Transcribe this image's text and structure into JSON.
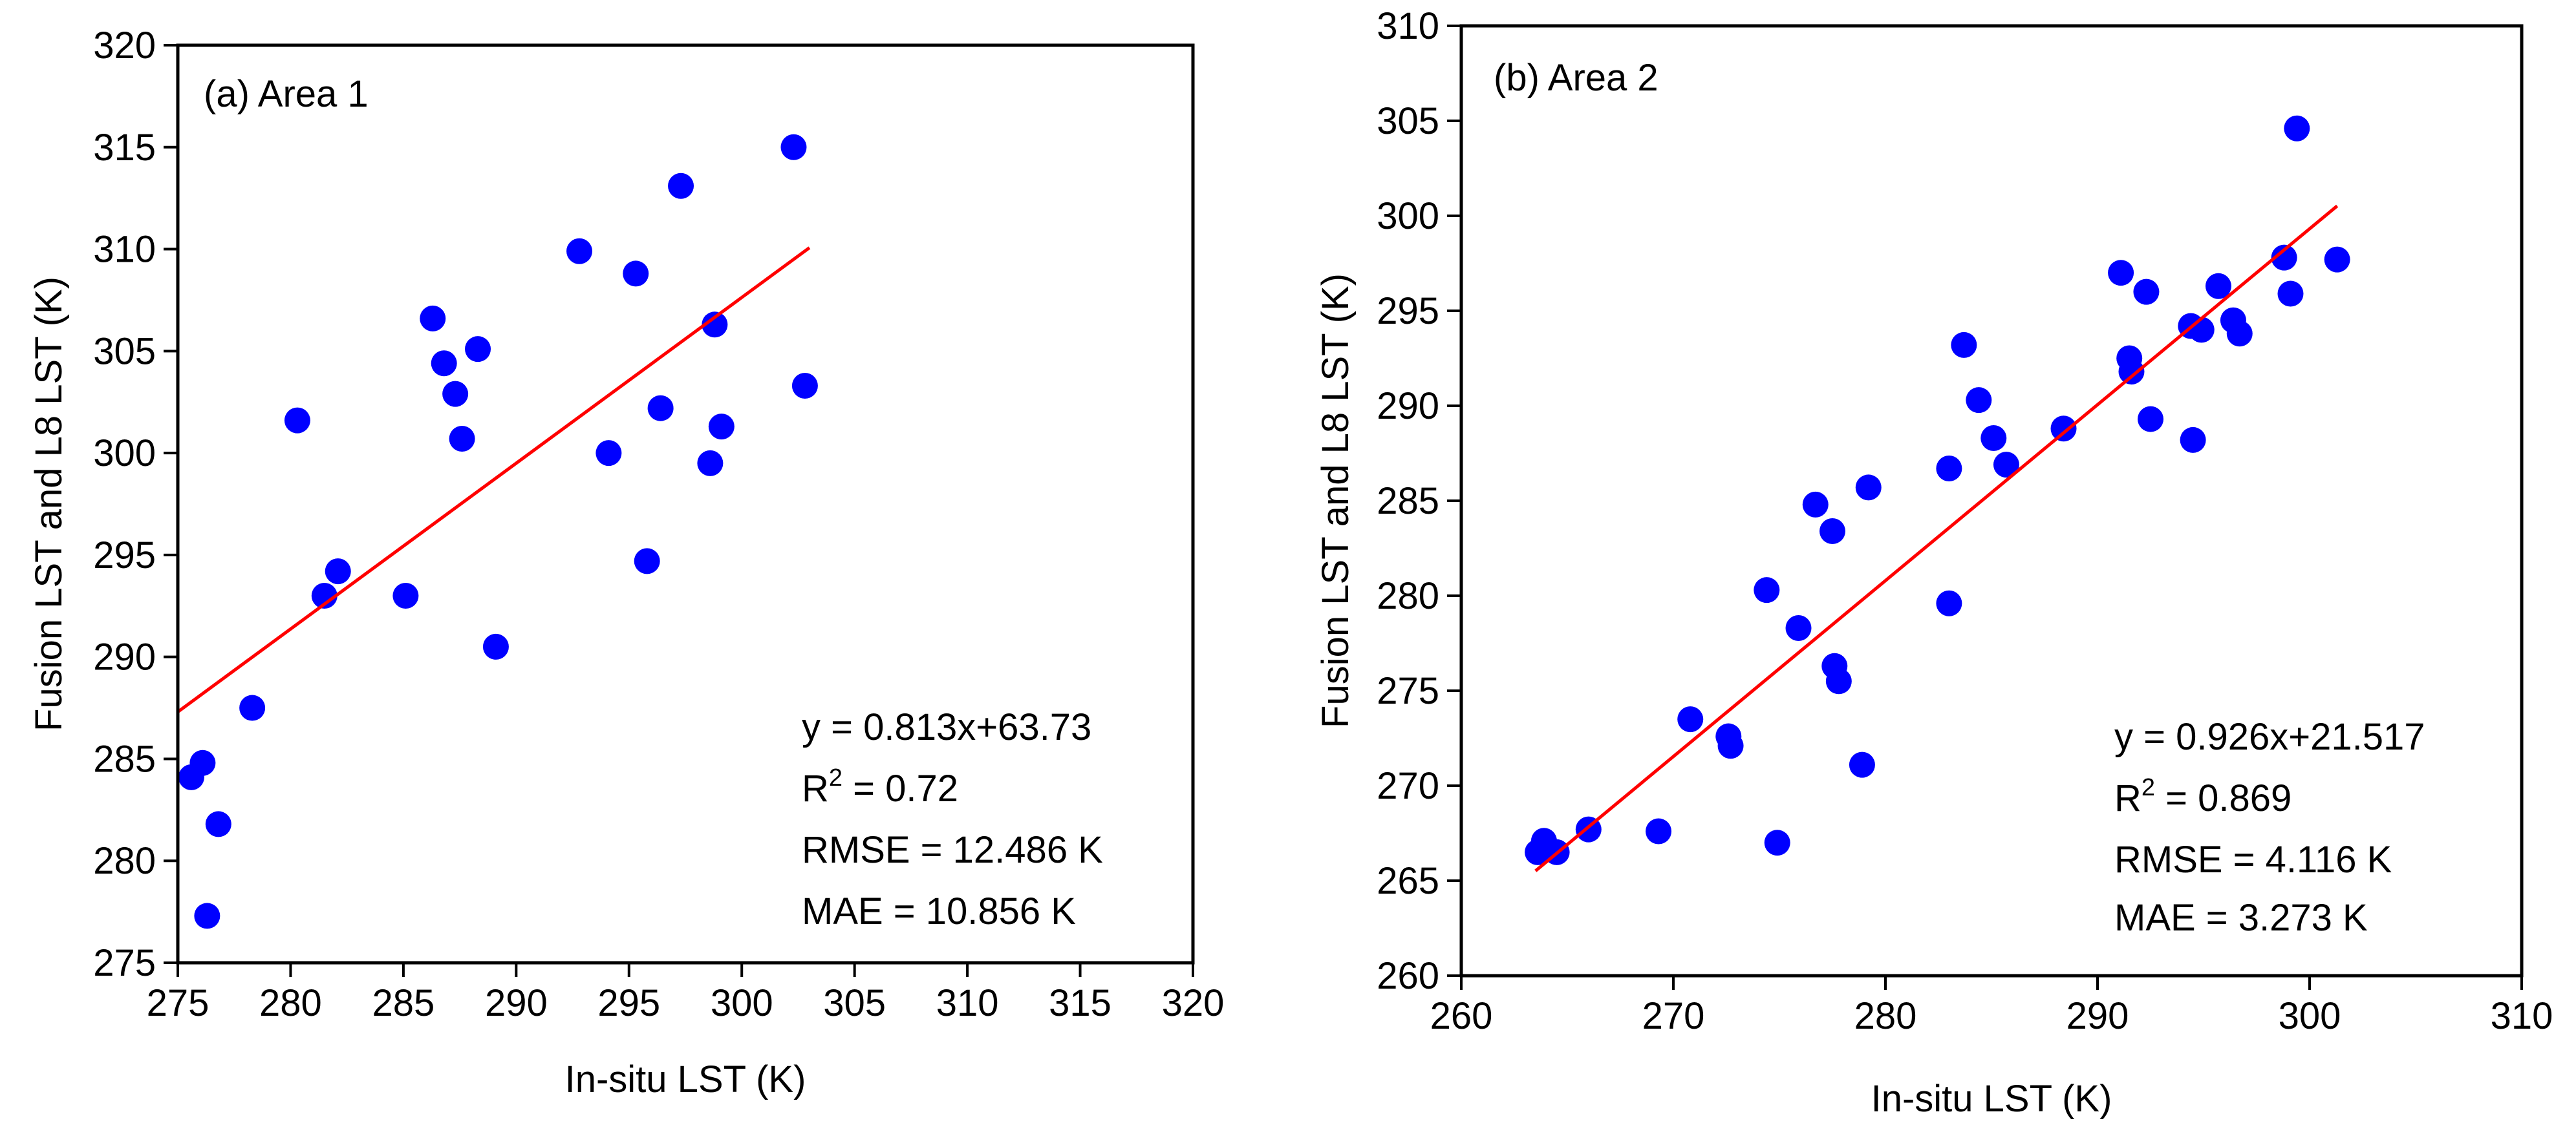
{
  "chart_data": [
    {
      "type": "scatter",
      "panel_label": "(a) Area 1",
      "xlabel": "In-situ LST (K)",
      "ylabel": "Fusion LST and L8 LST (K)",
      "xlim": [
        275,
        320
      ],
      "ylim": [
        275,
        320
      ],
      "xticks": [
        275,
        280,
        285,
        290,
        295,
        300,
        305,
        310,
        315,
        320
      ],
      "yticks": [
        275,
        280,
        285,
        290,
        295,
        300,
        305,
        310,
        315,
        320
      ],
      "point_color": "#0000ff",
      "line_color": "#ff0000",
      "fit": {
        "slope": 0.813,
        "intercept": 63.73,
        "x_range": [
          275,
          303
        ]
      },
      "stats": {
        "equation": "y = 0.813x+63.73",
        "r2_label": "R",
        "r2_sup": "2",
        "r2_value": " = 0.72",
        "rmse": "RMSE = 12.486 K",
        "mae": "MAE = 10.856 K"
      },
      "points": [
        {
          "x": 275.6,
          "y": 284.1
        },
        {
          "x": 276.1,
          "y": 284.8
        },
        {
          "x": 276.3,
          "y": 277.3
        },
        {
          "x": 276.8,
          "y": 281.8
        },
        {
          "x": 278.3,
          "y": 287.5
        },
        {
          "x": 280.3,
          "y": 301.6
        },
        {
          "x": 281.5,
          "y": 293.0
        },
        {
          "x": 282.1,
          "y": 294.2
        },
        {
          "x": 285.1,
          "y": 293.0
        },
        {
          "x": 286.3,
          "y": 306.6
        },
        {
          "x": 286.8,
          "y": 304.4
        },
        {
          "x": 287.3,
          "y": 302.9
        },
        {
          "x": 287.6,
          "y": 300.7
        },
        {
          "x": 288.3,
          "y": 305.1
        },
        {
          "x": 289.1,
          "y": 290.5
        },
        {
          "x": 292.8,
          "y": 309.9
        },
        {
          "x": 294.1,
          "y": 300.0
        },
        {
          "x": 295.3,
          "y": 308.8
        },
        {
          "x": 295.8,
          "y": 294.7
        },
        {
          "x": 296.4,
          "y": 302.2
        },
        {
          "x": 297.3,
          "y": 313.1
        },
        {
          "x": 298.6,
          "y": 299.5
        },
        {
          "x": 298.8,
          "y": 306.3
        },
        {
          "x": 299.1,
          "y": 301.3
        },
        {
          "x": 302.3,
          "y": 315.0
        },
        {
          "x": 302.8,
          "y": 303.3
        }
      ]
    },
    {
      "type": "scatter",
      "panel_label": "(b) Area 2",
      "xlabel": "In-situ LST (K)",
      "ylabel": "Fusion LST and L8 LST (K)",
      "xlim": [
        260,
        310
      ],
      "ylim": [
        260,
        310
      ],
      "xticks": [
        260,
        270,
        280,
        290,
        300,
        310
      ],
      "yticks": [
        260,
        265,
        270,
        275,
        280,
        285,
        290,
        295,
        300,
        305,
        310
      ],
      "point_color": "#0000ff",
      "line_color": "#ff0000",
      "fit": {
        "slope": 0.926,
        "intercept": 21.517,
        "x_range": [
          263.5,
          301.3
        ]
      },
      "stats": {
        "equation": "y = 0.926x+21.517",
        "r2_label": "R",
        "r2_sup": "2",
        "r2_value": " = 0.869",
        "rmse": "RMSE = 4.116 K",
        "mae": "MAE = 3.273 K"
      },
      "points": [
        {
          "x": 263.6,
          "y": 266.5
        },
        {
          "x": 263.9,
          "y": 267.1
        },
        {
          "x": 264.5,
          "y": 266.5
        },
        {
          "x": 266.0,
          "y": 267.7
        },
        {
          "x": 269.3,
          "y": 267.6
        },
        {
          "x": 270.8,
          "y": 273.5
        },
        {
          "x": 272.6,
          "y": 272.6
        },
        {
          "x": 272.7,
          "y": 272.1
        },
        {
          "x": 274.4,
          "y": 280.3
        },
        {
          "x": 274.9,
          "y": 267.0
        },
        {
          "x": 275.9,
          "y": 278.3
        },
        {
          "x": 276.7,
          "y": 284.8
        },
        {
          "x": 277.5,
          "y": 283.4
        },
        {
          "x": 277.6,
          "y": 276.3
        },
        {
          "x": 277.8,
          "y": 275.5
        },
        {
          "x": 278.9,
          "y": 271.1
        },
        {
          "x": 279.2,
          "y": 285.7
        },
        {
          "x": 283.0,
          "y": 279.6
        },
        {
          "x": 283.0,
          "y": 286.7
        },
        {
          "x": 283.7,
          "y": 293.2
        },
        {
          "x": 284.4,
          "y": 290.3
        },
        {
          "x": 285.1,
          "y": 288.3
        },
        {
          "x": 285.7,
          "y": 286.9
        },
        {
          "x": 288.4,
          "y": 288.8
        },
        {
          "x": 291.1,
          "y": 297.0
        },
        {
          "x": 291.5,
          "y": 292.5
        },
        {
          "x": 291.6,
          "y": 291.8
        },
        {
          "x": 292.3,
          "y": 296.0
        },
        {
          "x": 292.5,
          "y": 289.3
        },
        {
          "x": 294.4,
          "y": 294.2
        },
        {
          "x": 294.5,
          "y": 288.2
        },
        {
          "x": 294.9,
          "y": 294.0
        },
        {
          "x": 295.7,
          "y": 296.3
        },
        {
          "x": 296.4,
          "y": 294.5
        },
        {
          "x": 296.7,
          "y": 293.8
        },
        {
          "x": 298.8,
          "y": 297.8
        },
        {
          "x": 299.1,
          "y": 295.9
        },
        {
          "x": 299.4,
          "y": 304.6
        },
        {
          "x": 301.3,
          "y": 297.7
        }
      ]
    }
  ]
}
